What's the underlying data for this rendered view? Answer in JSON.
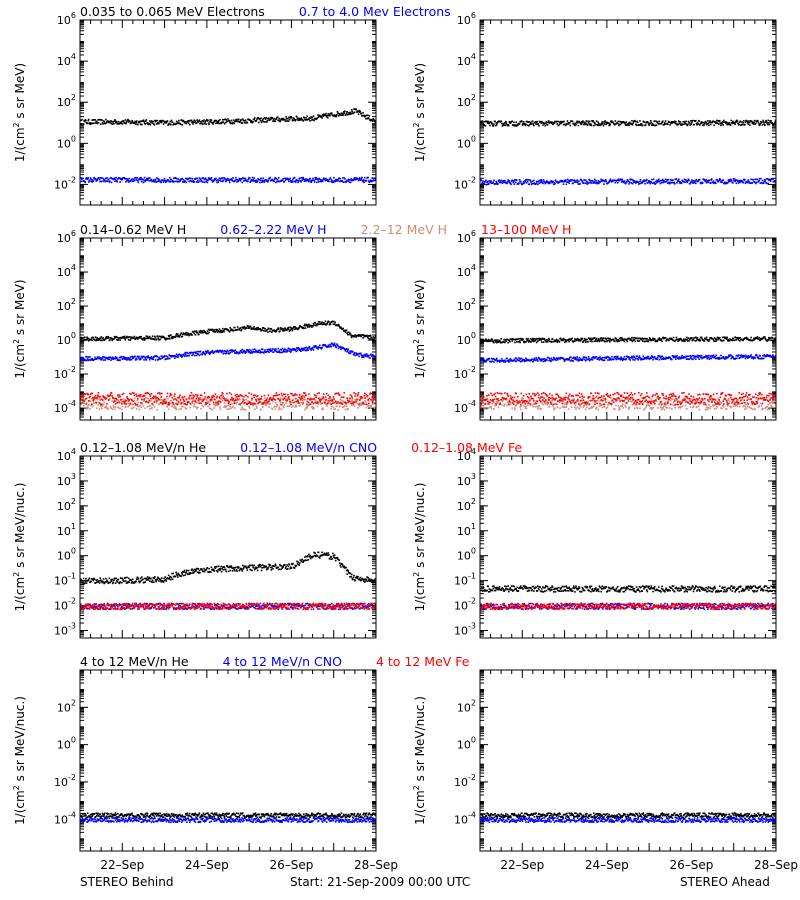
{
  "colors": {
    "black": "#000000",
    "blue": "#0000ff",
    "salmon": "#d08a78",
    "red": "#ff0000"
  },
  "footer": {
    "left": "STEREO Behind",
    "center": "Start: 21-Sep-2009 00:00 UTC",
    "right": "STEREO Ahead"
  },
  "chart_data": [
    {
      "type": "scatter",
      "row": 1,
      "titles": [
        {
          "text": "0.035 to 0.065 MeV Electrons",
          "color": "black"
        },
        {
          "text": "0.7 to 4.0 Mev Electrons",
          "color": "blue"
        }
      ],
      "ylabel_pre": "1/(cm",
      "ylabel_sup": "2",
      "ylabel_post": " s sr MeV)",
      "y_log": true,
      "ylim": [
        0.001,
        1000000
      ],
      "yticks": [
        {
          "b": "10",
          "e": "6"
        },
        {
          "b": "10",
          "e": "4"
        },
        {
          "b": "10",
          "e": "2"
        },
        {
          "b": "10",
          "e": "0"
        },
        {
          "b": "10",
          "e": "-2"
        }
      ],
      "yticks_vals": [
        1000000,
        10000,
        100,
        1,
        0.01
      ],
      "panels": {
        "behind": {
          "series": [
            {
              "name": "0.035 to 0.065 MeV Electrons",
              "color": "black",
              "x": [
                0,
                1,
                2,
                3,
                4,
                5,
                5.5,
                6,
                6.5,
                7
              ],
              "y": [
                12,
                12,
                11,
                12,
                14,
                17,
                18,
                28,
                40,
                12
              ]
            },
            {
              "name": "0.7 to 4.0 Mev Electrons",
              "color": "blue",
              "x": [
                0,
                7
              ],
              "y": [
                0.018,
                0.018
              ]
            }
          ]
        },
        "ahead": {
          "series": [
            {
              "name": "0.035 to 0.065 MeV Electrons",
              "color": "black",
              "x": [
                0,
                7
              ],
              "y": [
                10,
                11
              ]
            },
            {
              "name": "0.7 to 4.0 Mev Electrons",
              "color": "blue",
              "x": [
                0,
                7
              ],
              "y": [
                0.014,
                0.016
              ]
            }
          ]
        }
      }
    },
    {
      "type": "scatter",
      "row": 2,
      "titles": [
        {
          "text": "0.14–0.62 MeV H",
          "color": "black"
        },
        {
          "text": "0.62–2.22 MeV H",
          "color": "blue"
        },
        {
          "text": "2.2–12 MeV H",
          "color": "salmon"
        },
        {
          "text": "13–100 MeV H",
          "color": "red"
        }
      ],
      "ylabel_pre": "1/(cm",
      "ylabel_sup": "2",
      "ylabel_post": " s sr MeV)",
      "y_log": true,
      "ylim": [
        2e-05,
        1000000
      ],
      "yticks": [
        {
          "b": "10",
          "e": "6"
        },
        {
          "b": "10",
          "e": "4"
        },
        {
          "b": "10",
          "e": "2"
        },
        {
          "b": "10",
          "e": "0"
        },
        {
          "b": "10",
          "e": "-2"
        },
        {
          "b": "10",
          "e": "-4"
        }
      ],
      "yticks_vals": [
        1000000,
        10000,
        100,
        1,
        0.01,
        0.0001
      ],
      "panels": {
        "behind": {
          "series": [
            {
              "name": "0.14–0.62 MeV H",
              "color": "black",
              "x": [
                0,
                2,
                2.4,
                3,
                3.5,
                4,
                4.5,
                5,
                5.6,
                6,
                6.4,
                7
              ],
              "y": [
                1.3,
                1.5,
                2.3,
                3.5,
                4.5,
                6,
                4,
                5,
                10,
                12,
                2,
                1.5
              ]
            },
            {
              "name": "0.62–2.22 MeV H",
              "color": "blue",
              "x": [
                0,
                2,
                2.4,
                3,
                4,
                5,
                5.6,
                6,
                6.5,
                7
              ],
              "y": [
                0.09,
                0.1,
                0.15,
                0.2,
                0.25,
                0.28,
                0.4,
                0.6,
                0.15,
                0.12
              ]
            },
            {
              "name": "2.2–12 MeV H",
              "color": "salmon",
              "x": [
                0,
                7
              ],
              "y": [
                0.0002,
                0.0002
              ]
            },
            {
              "name": "13–100 MeV H",
              "color": "red",
              "x": [
                0,
                7
              ],
              "y": [
                0.0004,
                0.0004
              ]
            }
          ]
        },
        "ahead": {
          "series": [
            {
              "name": "0.14–0.62 MeV H",
              "color": "black",
              "x": [
                0,
                4,
                7
              ],
              "y": [
                1.0,
                1.2,
                1.3
              ]
            },
            {
              "name": "0.62–2.22 MeV H",
              "color": "blue",
              "x": [
                0,
                4,
                7
              ],
              "y": [
                0.07,
                0.1,
                0.12
              ]
            },
            {
              "name": "2.2–12 MeV H",
              "color": "salmon",
              "x": [
                0,
                7
              ],
              "y": [
                0.0002,
                0.0002
              ]
            },
            {
              "name": "13–100 MeV H",
              "color": "red",
              "x": [
                0,
                7
              ],
              "y": [
                0.0004,
                0.0004
              ]
            }
          ]
        }
      }
    },
    {
      "type": "scatter",
      "row": 3,
      "titles": [
        {
          "text": "0.12–1.08 MeV/n He",
          "color": "black"
        },
        {
          "text": "0.12–1.08 MeV/n CNO",
          "color": "blue"
        },
        {
          "text": "0.12–1.08 MeV Fe",
          "color": "red"
        }
      ],
      "ylabel_pre": "1/(cm",
      "ylabel_sup": "2",
      "ylabel_post": " s sr MeV/nuc.)",
      "y_log": true,
      "ylim": [
        0.0005,
        10000
      ],
      "yticks": [
        {
          "b": "10",
          "e": "4"
        },
        {
          "b": "10",
          "e": "3"
        },
        {
          "b": "10",
          "e": "2"
        },
        {
          "b": "10",
          "e": "1"
        },
        {
          "b": "10",
          "e": "0"
        },
        {
          "b": "10",
          "e": "-1"
        },
        {
          "b": "10",
          "e": "-2"
        },
        {
          "b": "10",
          "e": "-3"
        }
      ],
      "yticks_vals": [
        10000,
        1000,
        100,
        10,
        1,
        0.1,
        0.01,
        0.001
      ],
      "panels": {
        "behind": {
          "series": [
            {
              "name": "0.12–1.08 MeV/n He",
              "color": "black",
              "x": [
                0,
                2,
                2.3,
                3,
                4,
                5,
                5.5,
                6,
                6.4,
                7
              ],
              "y": [
                0.1,
                0.12,
                0.2,
                0.3,
                0.35,
                0.4,
                1.2,
                1.0,
                0.15,
                0.1
              ]
            },
            {
              "name": "0.12–1.08 MeV/n CNO",
              "color": "blue",
              "x": [
                0,
                7
              ],
              "y": [
                0.01,
                0.01
              ]
            },
            {
              "name": "0.12–1.08 MeV Fe",
              "color": "red",
              "x": [
                0,
                7
              ],
              "y": [
                0.01,
                0.01
              ]
            }
          ]
        },
        "ahead": {
          "series": [
            {
              "name": "0.12–1.08 MeV/n He",
              "color": "black",
              "x": [
                0,
                7
              ],
              "y": [
                0.05,
                0.05
              ]
            },
            {
              "name": "0.12–1.08 MeV/n CNO",
              "color": "blue",
              "x": [
                0,
                7
              ],
              "y": [
                0.01,
                0.01
              ]
            },
            {
              "name": "0.12–1.08 MeV Fe",
              "color": "red",
              "x": [
                0,
                7
              ],
              "y": [
                0.01,
                0.01
              ]
            }
          ]
        }
      }
    },
    {
      "type": "scatter",
      "row": 4,
      "titles": [
        {
          "text": "4 to 12 MeV/n He",
          "color": "black"
        },
        {
          "text": "4 to 12 MeV/n CNO",
          "color": "blue"
        },
        {
          "text": "4 to 12 MeV Fe",
          "color": "red"
        }
      ],
      "ylabel_pre": "1/(cm",
      "ylabel_sup": "2",
      "ylabel_post": " s sr MeV/nuc.)",
      "y_log": true,
      "ylim": [
        2e-06,
        10000
      ],
      "yticks": [
        {
          "b": "10",
          "e": "2"
        },
        {
          "b": "10",
          "e": "0"
        },
        {
          "b": "10",
          "e": "-2"
        },
        {
          "b": "10",
          "e": "-4"
        }
      ],
      "yticks_vals": [
        100,
        1,
        0.01,
        0.0001
      ],
      "panels": {
        "behind": {
          "series": [
            {
              "name": "4 to 12 MeV/n He",
              "color": "black",
              "x": [
                0,
                7
              ],
              "y": [
                0.00018,
                0.00018
              ]
            },
            {
              "name": "4 to 12 MeV/n CNO",
              "color": "blue",
              "x": [
                0,
                7
              ],
              "y": [
                0.0001,
                0.0001
              ]
            }
          ]
        },
        "ahead": {
          "series": [
            {
              "name": "4 to 12 MeV/n He",
              "color": "black",
              "x": [
                0,
                7
              ],
              "y": [
                0.00018,
                0.00018
              ]
            },
            {
              "name": "4 to 12 MeV/n CNO",
              "color": "blue",
              "x": [
                0,
                7
              ],
              "y": [
                0.0001,
                0.0001
              ]
            }
          ]
        }
      }
    }
  ],
  "x_axis": {
    "xlim": [
      0,
      7
    ],
    "tick_labels": [
      "22–Sep",
      "24–Sep",
      "26–Sep",
      "28–Sep"
    ],
    "tick_positions": [
      1,
      3,
      5,
      7
    ]
  }
}
